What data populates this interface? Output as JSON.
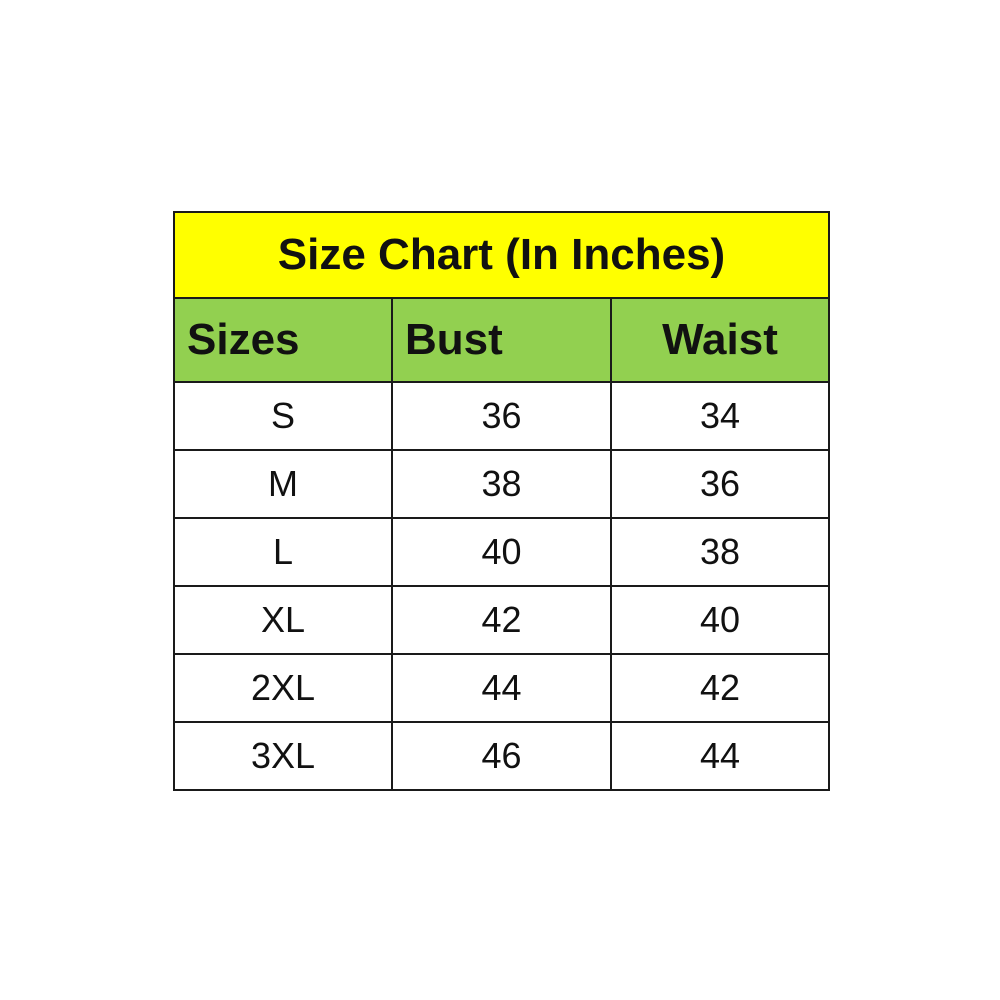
{
  "title": "Size Chart (In Inches)",
  "colors": {
    "title_bg": "#FFFF00",
    "header_bg": "#92D050"
  },
  "headers": [
    "Sizes",
    "Bust",
    "Waist"
  ],
  "rows": [
    [
      "S",
      "36",
      "34"
    ],
    [
      "M",
      "38",
      "36"
    ],
    [
      "L",
      "40",
      "38"
    ],
    [
      "XL",
      "42",
      "40"
    ],
    [
      "2XL",
      "44",
      "42"
    ],
    [
      "3XL",
      "46",
      "44"
    ]
  ]
}
